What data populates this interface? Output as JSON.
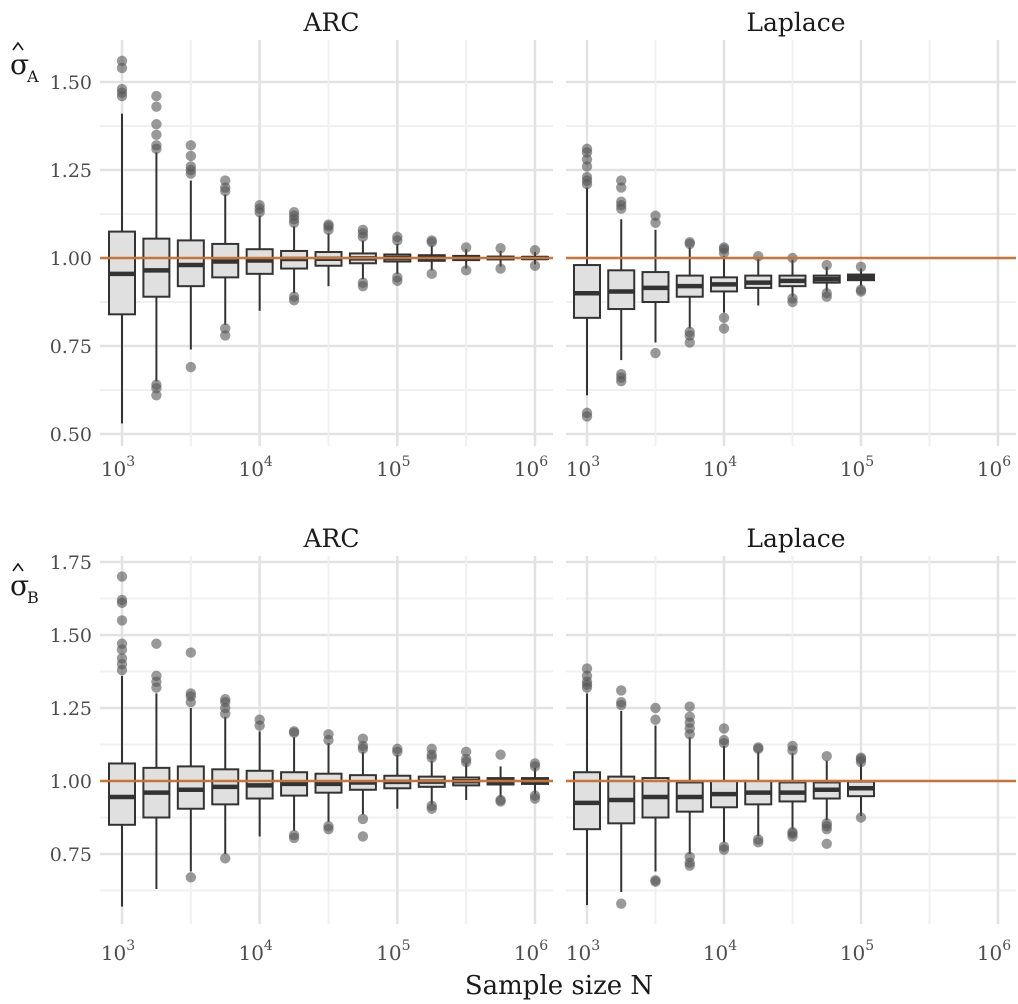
{
  "colors": {
    "box_fill": "#e0e0e0",
    "box_line": "#333333",
    "outlier": "#555555",
    "reference_line": "#c8743a",
    "grid_major": "#e2e2e2",
    "grid_minor": "#f0f0f0"
  },
  "chart_data": {
    "type": "boxplot",
    "xlabel": "Sample size N",
    "x_scale": "log10",
    "xlim": [
      1000,
      1000000
    ],
    "x_ticks": [
      1000,
      10000,
      100000,
      1000000
    ],
    "x_tick_labels": [
      {
        "base": "10",
        "exp": "3"
      },
      {
        "base": "10",
        "exp": "4"
      },
      {
        "base": "10",
        "exp": "5"
      },
      {
        "base": "10",
        "exp": "6"
      }
    ],
    "reference_line_y": 1.0,
    "panels": [
      {
        "row": 0,
        "col": 0,
        "title": "ARC",
        "ylabel": {
          "symbol": "σ",
          "sub": "A"
        },
        "ylim": [
          0.5,
          1.6
        ],
        "y_ticks": [
          0.5,
          0.75,
          1.0,
          1.25,
          1.5
        ],
        "y_tick_labels": [
          "0.50",
          "0.75",
          "1.00",
          "1.25",
          "1.50"
        ],
        "boxes": [
          {
            "n": 1000,
            "lower": 0.53,
            "q1": 0.84,
            "median": 0.955,
            "q3": 1.075,
            "upper": 1.41,
            "outliers": [
              1.46,
              1.47,
              1.48,
              1.54,
              1.56
            ]
          },
          {
            "n": 1778,
            "lower": 0.65,
            "q1": 0.89,
            "median": 0.965,
            "q3": 1.055,
            "upper": 1.3,
            "outliers": [
              0.61,
              0.63,
              0.64,
              1.31,
              1.32,
              1.35,
              1.38,
              1.43,
              1.46
            ]
          },
          {
            "n": 3162,
            "lower": 0.74,
            "q1": 0.92,
            "median": 0.98,
            "q3": 1.05,
            "upper": 1.22,
            "outliers": [
              0.69,
              1.24,
              1.25,
              1.26,
              1.29,
              1.32
            ]
          },
          {
            "n": 5623,
            "lower": 0.81,
            "q1": 0.945,
            "median": 0.99,
            "q3": 1.04,
            "upper": 1.18,
            "outliers": [
              0.78,
              0.8,
              1.19,
              1.2,
              1.22
            ]
          },
          {
            "n": 10000,
            "lower": 0.85,
            "q1": 0.955,
            "median": 0.993,
            "q3": 1.025,
            "upper": 1.12,
            "outliers": [
              1.13,
              1.14,
              1.15
            ]
          },
          {
            "n": 17783,
            "lower": 0.9,
            "q1": 0.97,
            "median": 0.997,
            "q3": 1.02,
            "upper": 1.09,
            "outliers": [
              0.88,
              0.89,
              1.1,
              1.11,
              1.12,
              1.13
            ]
          },
          {
            "n": 31623,
            "lower": 0.92,
            "q1": 0.978,
            "median": 0.998,
            "q3": 1.017,
            "upper": 1.07,
            "outliers": [
              1.08,
              1.09,
              1.095
            ]
          },
          {
            "n": 56234,
            "lower": 0.94,
            "q1": 0.985,
            "median": 0.999,
            "q3": 1.013,
            "upper": 1.05,
            "outliers": [
              0.92,
              0.93,
              1.06,
              1.07,
              1.08
            ]
          },
          {
            "n": 100000,
            "lower": 0.955,
            "q1": 0.99,
            "median": 1.0,
            "q3": 1.01,
            "upper": 1.04,
            "outliers": [
              0.935,
              0.945,
              1.05,
              1.06
            ]
          },
          {
            "n": 177828,
            "lower": 0.965,
            "q1": 0.992,
            "median": 1.0,
            "q3": 1.008,
            "upper": 1.035,
            "outliers": [
              0.955,
              1.045,
              1.05
            ]
          },
          {
            "n": 316228,
            "lower": 0.97,
            "q1": 0.994,
            "median": 1.0,
            "q3": 1.006,
            "upper": 1.025,
            "outliers": [
              0.965,
              1.03
            ]
          },
          {
            "n": 562341,
            "lower": 0.975,
            "q1": 0.996,
            "median": 1.0,
            "q3": 1.004,
            "upper": 1.02,
            "outliers": [
              0.97,
              1.028
            ]
          },
          {
            "n": 1000000,
            "lower": 0.982,
            "q1": 0.997,
            "median": 1.0,
            "q3": 1.003,
            "upper": 1.017,
            "outliers": [
              0.978,
              1.022
            ]
          }
        ]
      },
      {
        "row": 0,
        "col": 1,
        "title": "Laplace",
        "ylim": [
          0.5,
          1.6
        ],
        "boxes": [
          {
            "n": 1000,
            "lower": 0.61,
            "q1": 0.83,
            "median": 0.9,
            "q3": 0.98,
            "upper": 1.2,
            "outliers": [
              0.55,
              0.56,
              1.21,
              1.22,
              1.23,
              1.26,
              1.28,
              1.3,
              1.31
            ]
          },
          {
            "n": 1778,
            "lower": 0.71,
            "q1": 0.855,
            "median": 0.905,
            "q3": 0.965,
            "upper": 1.11,
            "outliers": [
              0.65,
              0.66,
              0.67,
              1.14,
              1.15,
              1.16,
              1.2,
              1.22
            ]
          },
          {
            "n": 3162,
            "lower": 0.76,
            "q1": 0.875,
            "median": 0.915,
            "q3": 0.96,
            "upper": 1.08,
            "outliers": [
              0.73,
              1.1,
              1.12
            ]
          },
          {
            "n": 5623,
            "lower": 0.8,
            "q1": 0.89,
            "median": 0.92,
            "q3": 0.95,
            "upper": 1.03,
            "outliers": [
              0.76,
              0.78,
              0.79,
              1.04,
              1.045
            ]
          },
          {
            "n": 10000,
            "lower": 0.845,
            "q1": 0.905,
            "median": 0.925,
            "q3": 0.945,
            "upper": 1.005,
            "outliers": [
              0.8,
              0.83,
              1.015,
              1.025,
              1.03
            ]
          },
          {
            "n": 17783,
            "lower": 0.865,
            "q1": 0.915,
            "median": 0.93,
            "q3": 0.95,
            "upper": 1.0,
            "outliers": [
              1.005
            ]
          },
          {
            "n": 31623,
            "lower": 0.89,
            "q1": 0.92,
            "median": 0.935,
            "q3": 0.95,
            "upper": 0.995,
            "outliers": [
              0.875,
              0.885,
              1.0
            ]
          },
          {
            "n": 56234,
            "lower": 0.905,
            "q1": 0.93,
            "median": 0.94,
            "q3": 0.95,
            "upper": 0.975,
            "outliers": [
              0.89,
              0.9,
              0.98
            ]
          },
          {
            "n": 100000,
            "lower": 0.92,
            "q1": 0.937,
            "median": 0.945,
            "q3": 0.953,
            "upper": 0.97,
            "outliers": [
              0.905,
              0.91,
              0.975
            ]
          }
        ]
      },
      {
        "row": 1,
        "col": 0,
        "title": "ARC",
        "ylabel": {
          "symbol": "σ",
          "sub": "B"
        },
        "ylim": [
          0.56,
          1.75
        ],
        "y_ticks": [
          0.75,
          1.0,
          1.25,
          1.5,
          1.75
        ],
        "y_tick_labels": [
          "0.75",
          "1.00",
          "1.25",
          "1.50",
          "1.75"
        ],
        "boxes": [
          {
            "n": 1000,
            "lower": 0.57,
            "q1": 0.85,
            "median": 0.945,
            "q3": 1.06,
            "upper": 1.36,
            "outliers": [
              1.38,
              1.4,
              1.42,
              1.45,
              1.47,
              1.55,
              1.61,
              1.62,
              1.7
            ]
          },
          {
            "n": 1778,
            "lower": 0.63,
            "q1": 0.875,
            "median": 0.96,
            "q3": 1.045,
            "upper": 1.3,
            "outliers": [
              1.32,
              1.34,
              1.36,
              1.47
            ]
          },
          {
            "n": 3162,
            "lower": 0.69,
            "q1": 0.905,
            "median": 0.97,
            "q3": 1.05,
            "upper": 1.25,
            "outliers": [
              0.67,
              1.27,
              1.29,
              1.3,
              1.44
            ]
          },
          {
            "n": 5623,
            "lower": 0.75,
            "q1": 0.92,
            "median": 0.98,
            "q3": 1.04,
            "upper": 1.22,
            "outliers": [
              0.735,
              1.23,
              1.25,
              1.27,
              1.28
            ]
          },
          {
            "n": 10000,
            "lower": 0.81,
            "q1": 0.94,
            "median": 0.985,
            "q3": 1.035,
            "upper": 1.17,
            "outliers": [
              1.19,
              1.21
            ]
          },
          {
            "n": 17783,
            "lower": 0.83,
            "q1": 0.95,
            "median": 0.99,
            "q3": 1.03,
            "upper": 1.15,
            "outliers": [
              0.805,
              0.815,
              1.165,
              1.17
            ]
          },
          {
            "n": 31623,
            "lower": 0.86,
            "q1": 0.96,
            "median": 0.99,
            "q3": 1.025,
            "upper": 1.13,
            "outliers": [
              0.835,
              0.845,
              1.14,
              1.16
            ]
          },
          {
            "n": 56234,
            "lower": 0.885,
            "q1": 0.97,
            "median": 0.995,
            "q3": 1.02,
            "upper": 1.1,
            "outliers": [
              0.81,
              0.87,
              1.11,
              1.12,
              1.145
            ]
          },
          {
            "n": 100000,
            "lower": 0.905,
            "q1": 0.975,
            "median": 0.997,
            "q3": 1.018,
            "upper": 1.09,
            "outliers": [
              1.1,
              1.11
            ]
          },
          {
            "n": 177828,
            "lower": 0.92,
            "q1": 0.98,
            "median": 0.998,
            "q3": 1.015,
            "upper": 1.07,
            "outliers": [
              0.905,
              0.915,
              1.08,
              1.09,
              1.11
            ]
          },
          {
            "n": 316228,
            "lower": 0.935,
            "q1": 0.985,
            "median": 0.999,
            "q3": 1.012,
            "upper": 1.06,
            "outliers": [
              1.065,
              1.075,
              1.1
            ]
          },
          {
            "n": 562341,
            "lower": 0.945,
            "q1": 0.988,
            "median": 0.999,
            "q3": 1.01,
            "upper": 1.05,
            "outliers": [
              0.93,
              0.935,
              1.09
            ]
          },
          {
            "n": 1000000,
            "lower": 0.955,
            "q1": 0.99,
            "median": 1.0,
            "q3": 1.01,
            "upper": 1.045,
            "outliers": [
              0.94,
              0.95,
              1.05,
              1.06
            ]
          }
        ]
      },
      {
        "row": 1,
        "col": 1,
        "title": "Laplace",
        "ylim": [
          0.56,
          1.75
        ],
        "boxes": [
          {
            "n": 1000,
            "lower": 0.575,
            "q1": 0.835,
            "median": 0.925,
            "q3": 1.03,
            "upper": 1.3,
            "outliers": [
              1.32,
              1.33,
              1.34,
              1.36,
              1.385
            ]
          },
          {
            "n": 1778,
            "lower": 0.62,
            "q1": 0.855,
            "median": 0.935,
            "q3": 1.015,
            "upper": 1.24,
            "outliers": [
              0.58,
              1.26,
              1.27,
              1.31
            ]
          },
          {
            "n": 3162,
            "lower": 0.69,
            "q1": 0.875,
            "median": 0.945,
            "q3": 1.01,
            "upper": 1.19,
            "outliers": [
              0.655,
              0.66,
              1.21,
              1.25
            ]
          },
          {
            "n": 5623,
            "lower": 0.75,
            "q1": 0.895,
            "median": 0.945,
            "q3": 0.995,
            "upper": 1.15,
            "outliers": [
              0.71,
              0.72,
              0.74,
              1.16,
              1.18,
              1.2,
              1.22,
              1.255
            ]
          },
          {
            "n": 10000,
            "lower": 0.79,
            "q1": 0.91,
            "median": 0.955,
            "q3": 1.0,
            "upper": 1.12,
            "outliers": [
              0.765,
              0.775,
              1.13,
              1.14,
              1.18
            ]
          },
          {
            "n": 17783,
            "lower": 0.81,
            "q1": 0.92,
            "median": 0.96,
            "q3": 1.0,
            "upper": 1.1,
            "outliers": [
              0.79,
              0.8,
              1.11,
              1.115
            ]
          },
          {
            "n": 31623,
            "lower": 0.835,
            "q1": 0.93,
            "median": 0.96,
            "q3": 0.995,
            "upper": 1.095,
            "outliers": [
              0.81,
              0.82,
              0.825,
              1.105,
              1.12
            ]
          },
          {
            "n": 56234,
            "lower": 0.865,
            "q1": 0.94,
            "median": 0.97,
            "q3": 0.995,
            "upper": 1.07,
            "outliers": [
              0.785,
              0.835,
              0.845,
              0.855,
              1.085
            ]
          },
          {
            "n": 100000,
            "lower": 0.88,
            "q1": 0.948,
            "median": 0.975,
            "q3": 0.998,
            "upper": 1.06,
            "outliers": [
              0.875,
              1.065,
              1.075,
              1.08
            ]
          }
        ]
      }
    ]
  }
}
